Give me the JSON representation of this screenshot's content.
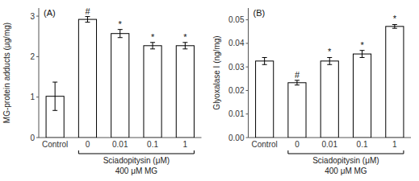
{
  "chart_data": [
    {
      "type": "bar",
      "title": "(A)",
      "categories": [
        "Control",
        "0",
        "0.01",
        "0.1",
        "1"
      ],
      "values": [
        1.02,
        2.92,
        2.57,
        2.27,
        2.27
      ],
      "errors": [
        0.35,
        0.07,
        0.1,
        0.08,
        0.08
      ],
      "color": "#ffffff",
      "ylabel": "MG-protein adducts (μg/mg)",
      "xlabel": "Sciadopitysin (μM)",
      "ylim": [
        0,
        3.2
      ],
      "yticks": [
        0,
        1,
        2,
        3
      ],
      "annotations": [
        {
          "category": "0",
          "text": "#"
        },
        {
          "category": "0.01",
          "text": "*"
        },
        {
          "category": "0.1",
          "text": "*"
        },
        {
          "category": "1",
          "text": "*"
        },
        {
          "categories": [
            "0",
            "0.01",
            "0.1",
            "1"
          ],
          "text": "400 μM MG"
        }
      ]
    },
    {
      "type": "bar",
      "title": "(B)",
      "categories": [
        "Control",
        "0",
        "0.01",
        "0.1",
        "1"
      ],
      "values": [
        0.0325,
        0.0233,
        0.0325,
        0.0355,
        0.0472
      ],
      "errors": [
        0.0015,
        0.001,
        0.0015,
        0.0015,
        0.0008
      ],
      "color": "#ffffff",
      "ylabel": "Glyoxalase I (ng/mg)",
      "xlabel": "Sciadopitysin (μM)",
      "ylim": [
        0.0,
        0.055
      ],
      "yticks": [
        {
          "value": 0,
          "label": "0.00"
        },
        0.01,
        0.02,
        0.03,
        0.04,
        0.05
      ],
      "annotations": [
        {
          "category": "0",
          "text": "#"
        },
        {
          "category": "0.01",
          "text": "*"
        },
        {
          "category": "0.1",
          "text": "*"
        },
        {
          "category": "1",
          "text": "*"
        },
        {
          "categories": [
            "0",
            "0.01",
            "0.1",
            "1"
          ],
          "text": "400 μM MG"
        }
      ]
    }
  ]
}
